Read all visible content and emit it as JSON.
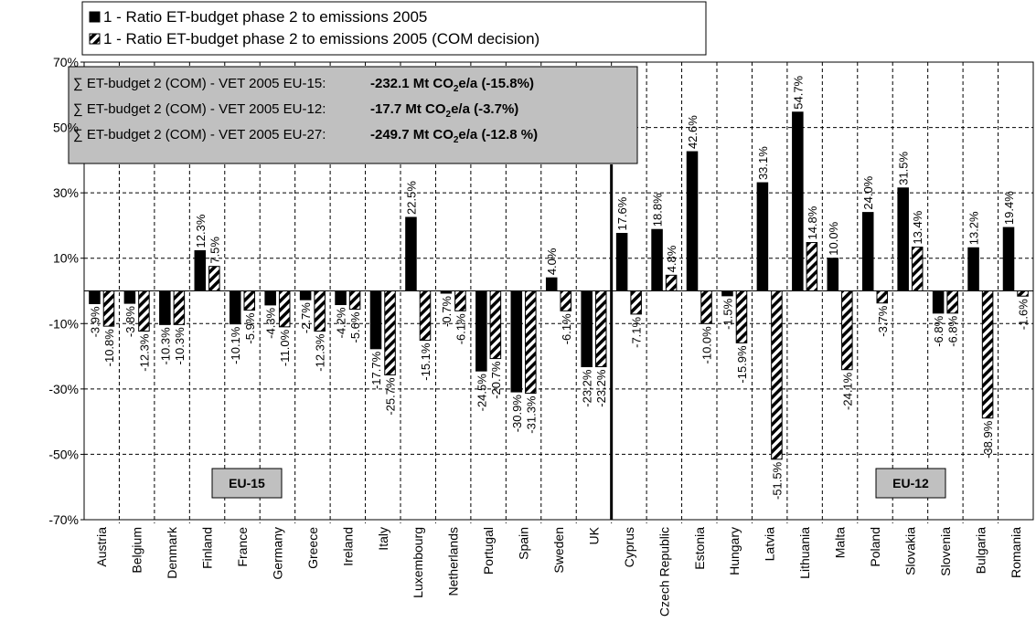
{
  "chart_data": {
    "type": "bar",
    "categories": [
      "Austria",
      "Belgium",
      "Denmark",
      "Finland",
      "France",
      "Germany",
      "Greece",
      "Ireland",
      "Italy",
      "Luxembourg",
      "Netherlands",
      "Portugal",
      "Spain",
      "Sweden",
      "UK",
      "Cyprus",
      "Czech Republic",
      "Estonia",
      "Hungary",
      "Latvia",
      "Lithuania",
      "Malta",
      "Poland",
      "Slovakia",
      "Slovenia",
      "Bulgaria",
      "Romania"
    ],
    "series": [
      {
        "name": "1 - Ratio ET-budget phase 2 to emissions 2005",
        "color": "#000000",
        "pattern": "solid",
        "values": [
          -3.9,
          -3.8,
          -10.3,
          12.3,
          -10.1,
          -4.3,
          -2.7,
          -4.2,
          -17.7,
          22.5,
          -0.7,
          -24.5,
          -30.9,
          4.0,
          -23.2,
          17.6,
          18.8,
          42.6,
          -1.5,
          33.1,
          54.7,
          10.0,
          24.0,
          31.5,
          -6.8,
          13.2,
          19.4
        ],
        "value_labels": [
          "-3.9%",
          "-3.8%",
          "-10.3%",
          "12.3%",
          "-10.1%",
          "-4.3%",
          "-2.7%",
          "-4.2%",
          "-17.7%",
          "22.5%",
          "-0.7%",
          "-24.5%",
          "-30.9%",
          "4.0%",
          "-23.2%",
          "17.6%",
          "18.8%",
          "42.6%",
          "-1.5%",
          "33.1%",
          "54.7%",
          "10.0%",
          "24.0%",
          "31.5%",
          "-6.8%",
          "13.2%",
          "19.4%"
        ]
      },
      {
        "name": "1 - Ratio ET-budget phase 2 to emissions 2005 (COM decision)",
        "color": "#000000",
        "pattern": "hatch",
        "values": [
          -10.8,
          -12.3,
          -10.3,
          7.5,
          -5.9,
          -11.0,
          -12.3,
          -5.6,
          -25.7,
          -15.1,
          -6.1,
          -20.7,
          -31.3,
          -6.1,
          -23.2,
          -7.1,
          4.8,
          -10.0,
          -15.9,
          -51.5,
          14.8,
          -24.1,
          -3.7,
          13.4,
          -6.8,
          -38.9,
          -1.6
        ],
        "value_labels": [
          "-10.8%",
          "-12.3%",
          "-10.3%",
          "7.5%",
          "-5.9%",
          "-11.0%",
          "-12.3%",
          "-5.6%",
          "-25.7%",
          "-15.1%",
          "-6.1%",
          "-20.7%",
          "-31.3%",
          "-6.1%",
          "-23.2%",
          "-7.1%",
          "4.8%",
          "-10.0%",
          "-15.9%",
          "-51.5%",
          "14.8%",
          "-24.1%",
          "-3.7%",
          "13.4%",
          "-6.8%",
          "-38.9%",
          "-1.6%"
        ]
      }
    ],
    "ylim": [
      -70,
      70
    ],
    "yticks": [
      {
        "value": -70,
        "label": "-70%"
      },
      {
        "value": -50,
        "label": "-50%"
      },
      {
        "value": -30,
        "label": "-30%"
      },
      {
        "value": -10,
        "label": "-10%"
      },
      {
        "value": 10,
        "label": "10%"
      },
      {
        "value": 30,
        "label": "30%"
      },
      {
        "value": 50,
        "label": "50%"
      },
      {
        "value": 70,
        "label": "70%"
      }
    ],
    "grid": true,
    "annotations": [
      {
        "text": "∑ ET-budget 2 (COM) - VET 2005 EU-15:",
        "value": "-232.1  Mt CO",
        "sub": "2",
        "tail": "e/a  (-15.8%)"
      },
      {
        "text": "∑ ET-budget 2 (COM) - VET 2005 EU-12:",
        "value": "-17.7  Mt CO",
        "sub": "2",
        "tail": "e/a  (-3.7%)"
      },
      {
        "text": "∑ ET-budget 2 (COM) - VET 2005 EU-27:",
        "value": "-249.7 Mt CO",
        "sub": "2",
        "tail": "e/a  (-12.8 %)"
      }
    ],
    "group_labels": [
      "EU-15",
      "EU-12"
    ]
  }
}
